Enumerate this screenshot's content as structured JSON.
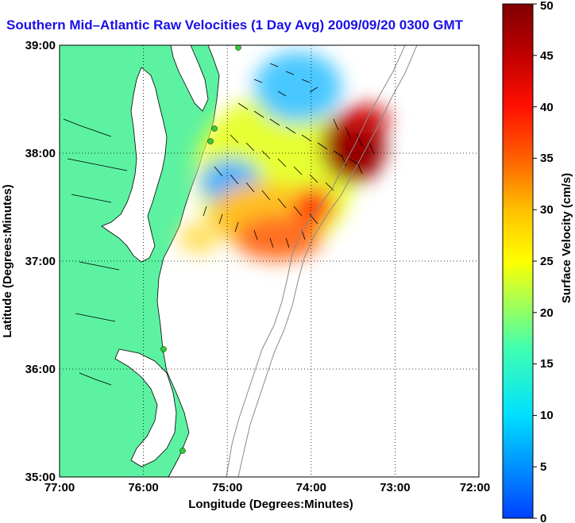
{
  "title": "Southern Mid–Atlantic Raw Velocities (1 Day Avg) 2009/09/20 0300 GMT",
  "map": {
    "xlabel": "Longitude (Degrees:Minutes)",
    "ylabel": "Latitude (Degrees:Minutes)",
    "lon_range": [
      -77,
      -72
    ],
    "lat_range": [
      35,
      39
    ],
    "x_ticks": [
      "77:00",
      "76:00",
      "75:00",
      "74:00",
      "73:00",
      "72:00"
    ],
    "y_ticks": [
      "39:00",
      "38:00",
      "37:00",
      "36:00",
      "35:00"
    ],
    "grid": "dotted",
    "land_color": "#5cf2a2",
    "station_color": "#33cc33",
    "stations": [
      {
        "lon": -75.1,
        "lat": 38.98
      },
      {
        "lon": -75.15,
        "lat": 38.25
      },
      {
        "lon": -75.2,
        "lat": 38.13
      },
      {
        "lon": -75.5,
        "lat": 36.2
      },
      {
        "lon": -75.46,
        "lat": 35.25
      }
    ]
  },
  "colorbar": {
    "label": "Surface Velocity (cm/s)",
    "min": 0,
    "max": 50,
    "ticks": [
      "0",
      "5",
      "10",
      "15",
      "20",
      "25",
      "30",
      "35",
      "40",
      "45",
      "50"
    ]
  }
}
